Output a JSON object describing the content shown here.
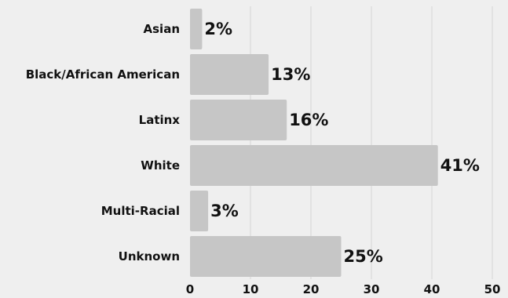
{
  "chart_data": {
    "type": "bar",
    "orientation": "horizontal",
    "categories": [
      "Asian",
      "Black/African American",
      "Latinx",
      "White",
      "Multi-Racial",
      "Unknown"
    ],
    "values": [
      2,
      13,
      16,
      41,
      3,
      25
    ],
    "data_labels": [
      "2%",
      "13%",
      "16%",
      "41%",
      "3%",
      "25%"
    ],
    "xlim": [
      0,
      50
    ],
    "x_ticks": [
      "0",
      "10",
      "20",
      "30",
      "40",
      "50"
    ],
    "grid": "vertical",
    "legend": "none",
    "title": "",
    "xlabel": "",
    "ylabel": "",
    "colors": {
      "bar": "#c6c6c6",
      "background": "#efefef",
      "grid": "#d6d6d6",
      "text": "#111111"
    }
  }
}
